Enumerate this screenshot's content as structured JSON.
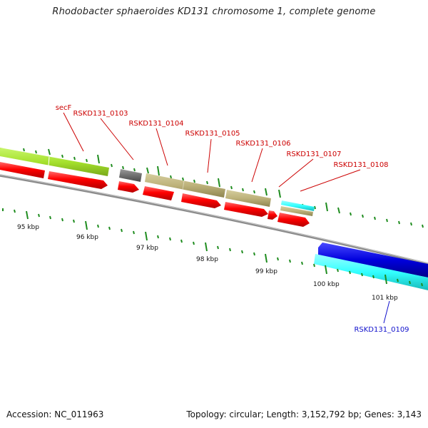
{
  "title": "Rhodobacter sphaeroides KD131 chromosome 1, complete genome",
  "footer": {
    "accession": "Accession: NC_011963",
    "summary": "Topology: circular; Length: 3,152,792 bp; Genes: 3,143"
  },
  "colors": {
    "backbone": "#8c8c8c",
    "tick": "#1e8c1e",
    "forward_label": "#cc0000",
    "reverse_label": "#1010cc",
    "red_cds": "#ff0000",
    "lime": "#a6e22e",
    "khaki": "#bdb27a",
    "gray": "#707070",
    "cyan": "#33ffff",
    "blue": "#0000dd"
  },
  "scale_labels": [
    "95 kbp",
    "96 kbp",
    "97 kbp",
    "98 kbp",
    "99 kbp",
    "100 kbp",
    "101 kbp"
  ],
  "genes": [
    {
      "name": "secF",
      "strand": "forward",
      "start": 94.9,
      "end": 95.86
    },
    {
      "name": "RSKD131_0103",
      "strand": "forward",
      "start": 95.96,
      "end": 96.35
    },
    {
      "name": "RSKD131_0104",
      "strand": "forward",
      "start": 96.42,
      "end": 97.15
    },
    {
      "name": "RSKD131_0105",
      "strand": "forward",
      "start": 97.15,
      "end": 98.1
    },
    {
      "name": "RSKD131_0106",
      "strand": "forward",
      "start": 98.14,
      "end": 98.93
    },
    {
      "name": "RSKD131_0107",
      "strand": "forward",
      "start": 98.97,
      "end": 99.16
    },
    {
      "name": "RSKD131_0108",
      "strand": "forward",
      "start": 99.17,
      "end": 99.73
    },
    {
      "name": "RSKD131_0109",
      "strand": "reverse",
      "start": 99.85,
      "end": 101.6
    }
  ]
}
